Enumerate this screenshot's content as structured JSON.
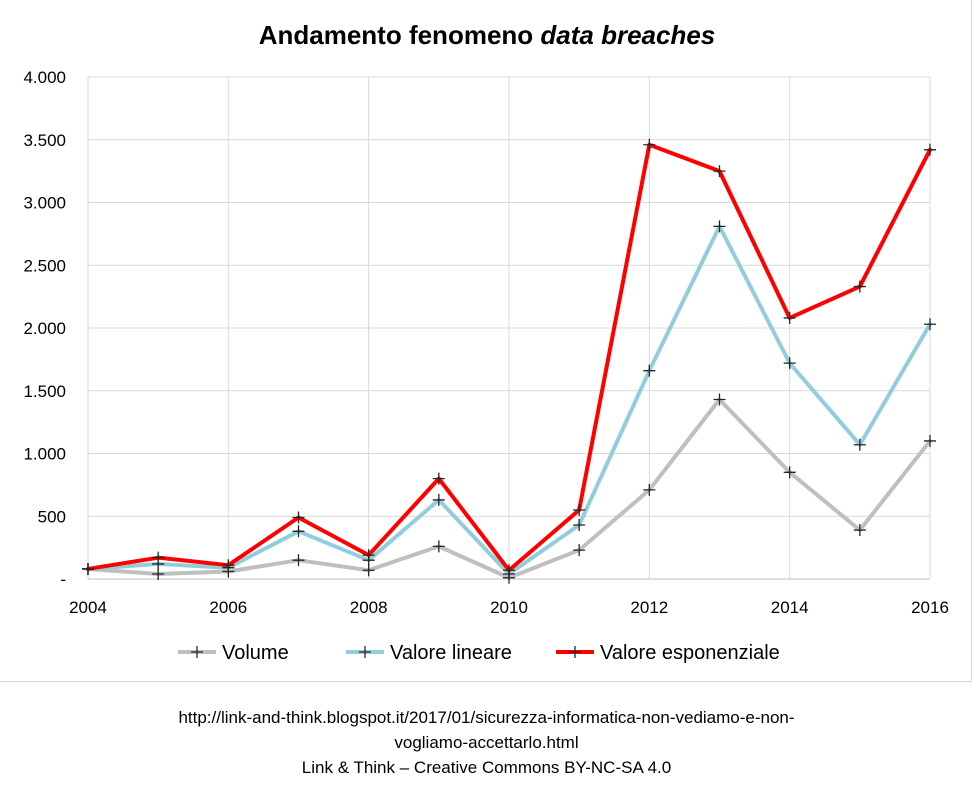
{
  "chart_data": {
    "type": "line",
    "title_main": "Andamento fenomeno ",
    "title_emph": "data breaches",
    "x_tick_labels": [
      "2004",
      "2006",
      "2008",
      "2010",
      "2012",
      "2014",
      "2016"
    ],
    "y_tick_labels": [
      "-",
      "500",
      "1.000",
      "1.500",
      "2.000",
      "2.500",
      "3.000",
      "3.500",
      "4.000"
    ],
    "ylim": [
      0,
      4000
    ],
    "xlim": [
      2004,
      2016
    ],
    "grid": true,
    "legend_position": "bottom",
    "x": [
      2004,
      2005,
      2006,
      2007,
      2008,
      2009,
      2010,
      2011,
      2012,
      2013,
      2014,
      2015,
      2016
    ],
    "series": [
      {
        "name": "Volume",
        "color": "#bfbfbf",
        "values": [
          80,
          40,
          60,
          150,
          70,
          260,
          10,
          230,
          710,
          1430,
          850,
          390,
          1100
        ]
      },
      {
        "name": "Valore lineare",
        "color": "#92cddc",
        "values": [
          80,
          120,
          90,
          380,
          150,
          630,
          40,
          430,
          1660,
          2810,
          1720,
          1070,
          2030
        ]
      },
      {
        "name": "Valore esponenziale",
        "color": "#ff0000",
        "values": [
          80,
          170,
          110,
          490,
          190,
          800,
          70,
          550,
          3460,
          3250,
          2080,
          2330,
          3420
        ]
      }
    ],
    "marker_color": "#262626"
  },
  "credits": {
    "url_line_1": "http://link-and-think.blogspot.it/2017/01/sicurezza-informatica-non-vediamo-e-non-",
    "url_line_2": "vogliamo-accettarlo.html",
    "license": "Link & Think – Creative Commons BY-NC-SA 4.0"
  }
}
